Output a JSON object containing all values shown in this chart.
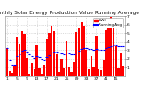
{
  "title": "Monthly Solar Energy Production Value Running Average",
  "bar_color": "#ff0000",
  "avg_color": "#0000ff",
  "background": "#ffffff",
  "grid_color": "#c0c0c0",
  "values": [
    3.2,
    0.5,
    0.3,
    1.1,
    4.5,
    3.8,
    5.2,
    4.9,
    2.1,
    0.2,
    1.5,
    0.8,
    3.6,
    0.9,
    0.2,
    1.3,
    4.3,
    5.0,
    5.9,
    5.2,
    2.5,
    0.4,
    2.0,
    0.9,
    4.1,
    1.0,
    0.4,
    1.6,
    5.1,
    5.6,
    6.3,
    5.9,
    3.0,
    0.7,
    2.3,
    1.0,
    4.6,
    0.8,
    0.6,
    1.9,
    5.3,
    5.9,
    6.9,
    6.2,
    3.4,
    0.9,
    2.7,
    1.2
  ],
  "running_avg": [
    3.2,
    1.9,
    1.3,
    1.3,
    2.3,
    2.5,
    2.9,
    3.0,
    2.8,
    2.5,
    2.3,
    2.1,
    2.3,
    2.2,
    2.0,
    1.9,
    2.2,
    2.4,
    2.7,
    2.8,
    2.8,
    2.7,
    2.6,
    2.5,
    2.7,
    2.6,
    2.5,
    2.5,
    2.7,
    2.9,
    3.1,
    3.2,
    3.2,
    3.1,
    3.1,
    3.0,
    3.1,
    3.0,
    3.0,
    3.0,
    3.2,
    3.3,
    3.5,
    3.6,
    3.6,
    3.5,
    3.5,
    3.5
  ],
  "ylim": [
    0,
    7
  ],
  "ytick_values": [
    1,
    2,
    3,
    4,
    5,
    6,
    7
  ],
  "legend_labels": [
    "kWh",
    "Running Avg"
  ],
  "title_fontsize": 4.2,
  "tick_fontsize": 3.2,
  "legend_fontsize": 3.0
}
